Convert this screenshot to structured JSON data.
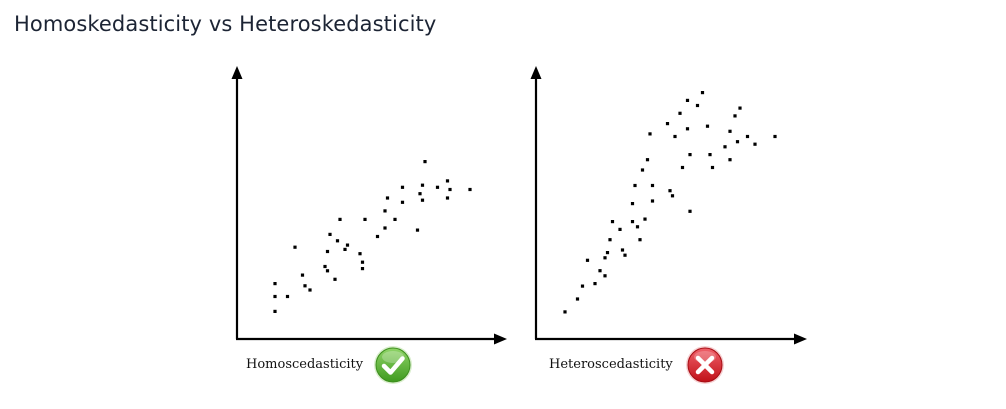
{
  "page": {
    "title": "Homoskedasticity vs Heteroskedasticity"
  },
  "colors": {
    "axis": "#000000",
    "point": "#000000",
    "check_badge": "#5cb531",
    "cross_badge": "#e2232c"
  },
  "chart_data": [
    {
      "type": "scatter",
      "title": "",
      "caption": "Homoscedasticity",
      "status_icon": "check-icon",
      "xlabel": "",
      "ylabel": "",
      "xlim": [
        0,
        100
      ],
      "ylim": [
        0,
        100
      ],
      "grid": false,
      "points": [
        [
          12,
          17
        ],
        [
          12,
          11
        ],
        [
          12,
          4
        ],
        [
          17,
          11
        ],
        [
          20,
          34
        ],
        [
          23,
          21
        ],
        [
          24,
          16
        ],
        [
          26,
          14
        ],
        [
          32,
          25
        ],
        [
          33,
          32
        ],
        [
          33,
          23
        ],
        [
          34,
          40
        ],
        [
          36,
          19
        ],
        [
          37,
          37
        ],
        [
          38,
          47
        ],
        [
          40,
          33
        ],
        [
          41,
          35
        ],
        [
          46,
          31
        ],
        [
          47,
          24
        ],
        [
          47,
          27
        ],
        [
          48,
          47
        ],
        [
          53,
          39
        ],
        [
          56,
          51
        ],
        [
          57,
          57
        ],
        [
          56,
          43
        ],
        [
          60,
          47
        ],
        [
          63,
          62
        ],
        [
          63,
          55
        ],
        [
          69,
          42
        ],
        [
          70,
          59
        ],
        [
          71,
          56
        ],
        [
          71,
          63
        ],
        [
          72,
          74
        ],
        [
          77,
          62
        ],
        [
          81,
          65
        ],
        [
          81,
          57
        ],
        [
          82,
          61
        ],
        [
          90,
          61
        ]
      ]
    },
    {
      "type": "scatter",
      "title": "",
      "caption": "Heteroscedasticity",
      "status_icon": "cross-icon",
      "xlabel": "",
      "ylabel": "",
      "xlim": [
        0,
        100
      ],
      "ylim": [
        0,
        100
      ],
      "grid": false,
      "points": [
        [
          8,
          7
        ],
        [
          13,
          12
        ],
        [
          15,
          17
        ],
        [
          17,
          27
        ],
        [
          20,
          18
        ],
        [
          22,
          23
        ],
        [
          24,
          21
        ],
        [
          24,
          28
        ],
        [
          25,
          30
        ],
        [
          26,
          35
        ],
        [
          27,
          42
        ],
        [
          30,
          39
        ],
        [
          31,
          31
        ],
        [
          32,
          29
        ],
        [
          35,
          42
        ],
        [
          35,
          49
        ],
        [
          36,
          56
        ],
        [
          37,
          40
        ],
        [
          38,
          35
        ],
        [
          39,
          62
        ],
        [
          40,
          43
        ],
        [
          41,
          66
        ],
        [
          42,
          76
        ],
        [
          43,
          56
        ],
        [
          43,
          50
        ],
        [
          49,
          80
        ],
        [
          50,
          54
        ],
        [
          51,
          52
        ],
        [
          52,
          75
        ],
        [
          54,
          84
        ],
        [
          55,
          63
        ],
        [
          57,
          89
        ],
        [
          57,
          78
        ],
        [
          58,
          68
        ],
        [
          58,
          46
        ],
        [
          61,
          87
        ],
        [
          63,
          92
        ],
        [
          65,
          79
        ],
        [
          66,
          68
        ],
        [
          67,
          63
        ],
        [
          72,
          71
        ],
        [
          74,
          77
        ],
        [
          74,
          66
        ],
        [
          76,
          83
        ],
        [
          77,
          73
        ],
        [
          78,
          86
        ],
        [
          81,
          75
        ],
        [
          84,
          72
        ],
        [
          92,
          75
        ]
      ]
    }
  ]
}
